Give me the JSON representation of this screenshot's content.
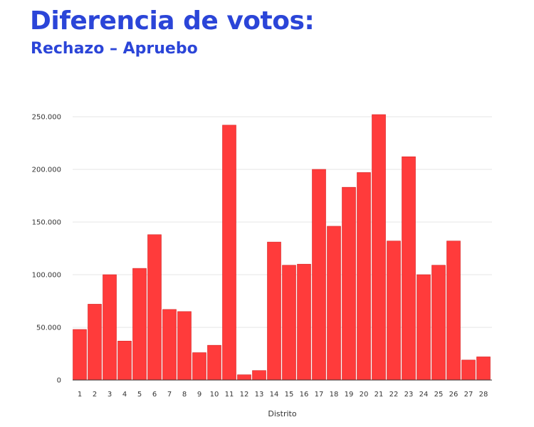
{
  "header": {
    "title": "Diferencia de votos:",
    "subtitle": "Rechazo – Apruebo"
  },
  "colors": {
    "title": "#2b45d8",
    "bar": "#ff3b3b",
    "bar_stroke": "#d62020",
    "grid": "#e6e6e6",
    "axis": "#333333"
  },
  "chart_data": {
    "type": "bar",
    "title": "Diferencia de votos:",
    "subtitle": "Rechazo – Apruebo",
    "xlabel": "Distrito",
    "ylabel": "",
    "categories": [
      "1",
      "2",
      "3",
      "4",
      "5",
      "6",
      "7",
      "8",
      "9",
      "10",
      "11",
      "12",
      "13",
      "14",
      "15",
      "16",
      "17",
      "18",
      "19",
      "20",
      "21",
      "22",
      "23",
      "24",
      "25",
      "26",
      "27",
      "28"
    ],
    "values": [
      48000,
      72000,
      100000,
      37000,
      106000,
      138000,
      67000,
      65000,
      26000,
      33000,
      242000,
      5000,
      9000,
      131000,
      109000,
      110000,
      200000,
      146000,
      183000,
      197000,
      252000,
      132000,
      212000,
      100000,
      109000,
      132000,
      19000,
      22000
    ],
    "ylim": [
      0,
      250000
    ],
    "yticks": [
      0,
      50000,
      100000,
      150000,
      200000,
      250000
    ],
    "ytick_labels": [
      "0",
      "50.000",
      "100.000",
      "150.000",
      "200.000",
      "250.000"
    ],
    "grid": true,
    "legend": "none"
  }
}
